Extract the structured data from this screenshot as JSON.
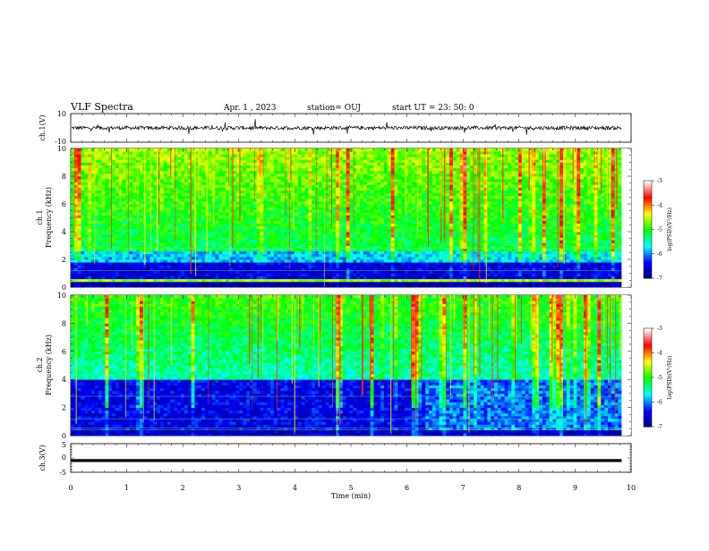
{
  "header": {
    "title": "VLF Spectra",
    "date": "Apr. 1 , 2023",
    "station": "station= OUJ",
    "start": "start UT = 23: 50: 0"
  },
  "chart_data": [
    {
      "type": "line",
      "id": "ch1-waveform",
      "ylabel": "ch.1(V)",
      "ylim": [
        -10,
        10
      ],
      "yticks": [
        "10",
        "-10"
      ],
      "xlim": [
        0,
        10
      ],
      "baseline_value": 0,
      "color": "#000000"
    },
    {
      "type": "heatmap",
      "id": "ch1-spectrogram",
      "ylabel": "ch.1\nFrequency (kHz)",
      "ylabel_lines": [
        "ch.1",
        "Frequency (kHz)"
      ],
      "ylim": [
        0,
        10
      ],
      "yticks": [
        "0",
        "2",
        "4",
        "6",
        "8",
        "10"
      ],
      "xlim": [
        0,
        9.83
      ],
      "colorbar": {
        "label": "log(PSD)(V²/Hz)",
        "range": [
          -7,
          -3
        ],
        "ticks": [
          "-3",
          "-4",
          "-5",
          "-6",
          "-7"
        ],
        "colors": [
          "#00007f",
          "#0000ff",
          "#00ffff",
          "#00ff00",
          "#ffff00",
          "#ff0000",
          "#ffffff"
        ]
      }
    },
    {
      "type": "heatmap",
      "id": "ch2-spectrogram",
      "ylabel": "ch.2\nFrequency (kHz)",
      "ylabel_lines": [
        "ch.2",
        "Frequency (kHz)"
      ],
      "ylim": [
        0,
        10
      ],
      "yticks": [
        "0",
        "2",
        "4",
        "6",
        "8",
        "10"
      ],
      "xlim": [
        0,
        9.83
      ],
      "colorbar": {
        "label": "log(PSD)(V²/Hz)",
        "range": [
          -7,
          -3
        ],
        "ticks": [
          "-3",
          "-4",
          "-5",
          "-6",
          "-7"
        ],
        "colors": [
          "#00007f",
          "#0000ff",
          "#00ffff",
          "#00ff00",
          "#ffff00",
          "#ff0000",
          "#ffffff"
        ]
      }
    },
    {
      "type": "line",
      "id": "ch3-trace",
      "ylabel": "ch.3(V)",
      "ylim": [
        -5,
        5
      ],
      "yticks": [
        "5",
        "0",
        "-5"
      ],
      "xlim": [
        0,
        9.83
      ],
      "values": [
        -0.9,
        -0.9
      ],
      "x": [
        0,
        9.83
      ],
      "color": "#000000"
    }
  ],
  "xaxis": {
    "label": "Time (min)",
    "range": [
      0,
      10
    ],
    "ticks": [
      "0",
      "1",
      "2",
      "3",
      "4",
      "5",
      "6",
      "7",
      "8",
      "9",
      "10"
    ]
  }
}
